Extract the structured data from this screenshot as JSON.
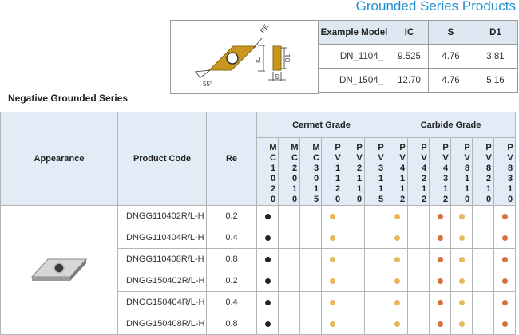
{
  "page_title": "Grounded Series Products",
  "section_title": "Negative Grounded Series",
  "diagram": {
    "labels": {
      "re": "RE",
      "ic": "IC",
      "d1": "D1",
      "s": "S",
      "angle": "55°"
    }
  },
  "example_table": {
    "headers": [
      "Example Model",
      "IC",
      "S",
      "D1"
    ],
    "rows": [
      [
        "DN_1104_",
        "9.525",
        "4.76",
        "3.81"
      ],
      [
        "DN_1504_",
        "12.70",
        "4.76",
        "5.16"
      ]
    ]
  },
  "grade_table": {
    "headers": {
      "appearance": "Appearance",
      "product_code": "Product Code",
      "re": "Re",
      "cermet_group": "Cermet Grade",
      "carbide_group": "Carbide Grade"
    },
    "cermet_grades": [
      "MC1020",
      "MC2010",
      "MC3015",
      "PV1120",
      "PV2110",
      "PV3115"
    ],
    "carbide_grades": [
      "PV4112",
      "PV4212",
      "PV4312",
      "PV8110",
      "PV8210",
      "PV8310"
    ],
    "rows": [
      {
        "code": "DNGG110402R/L-H",
        "re": "0.2",
        "cermet": [
          "black",
          "",
          "",
          "yellow",
          "",
          ""
        ],
        "carbide": [
          "yellow",
          "",
          "orange",
          "yellow",
          "",
          "orange"
        ]
      },
      {
        "code": "DNGG110404R/L-H",
        "re": "0.4",
        "cermet": [
          "black",
          "",
          "",
          "yellow",
          "",
          ""
        ],
        "carbide": [
          "yellow",
          "",
          "orange",
          "yellow",
          "",
          "orange"
        ]
      },
      {
        "code": "DNGG110408R/L-H",
        "re": "0.8",
        "cermet": [
          "black",
          "",
          "",
          "yellow",
          "",
          ""
        ],
        "carbide": [
          "yellow",
          "",
          "orange",
          "yellow",
          "",
          "orange"
        ]
      },
      {
        "code": "DNGG150402R/L-H",
        "re": "0.2",
        "cermet": [
          "black",
          "",
          "",
          "yellow",
          "",
          ""
        ],
        "carbide": [
          "yellow",
          "",
          "orange",
          "yellow",
          "",
          "orange"
        ]
      },
      {
        "code": "DNGG150404R/L-H",
        "re": "0.4",
        "cermet": [
          "black",
          "",
          "",
          "yellow",
          "",
          ""
        ],
        "carbide": [
          "yellow",
          "",
          "orange",
          "yellow",
          "",
          "orange"
        ]
      },
      {
        "code": "DNGG150408R/L-H",
        "re": "0.8",
        "cermet": [
          "black",
          "",
          "",
          "yellow",
          "",
          ""
        ],
        "carbide": [
          "yellow",
          "",
          "orange",
          "yellow",
          "",
          "orange"
        ]
      }
    ]
  },
  "colors": {
    "title_blue": "#1f8fd0",
    "header_bg": "#e1ecf6",
    "dot_black": "#222222",
    "dot_yellow": "#e7b959",
    "dot_orange": "#d9703a",
    "insert_gold": "#c9961f"
  }
}
